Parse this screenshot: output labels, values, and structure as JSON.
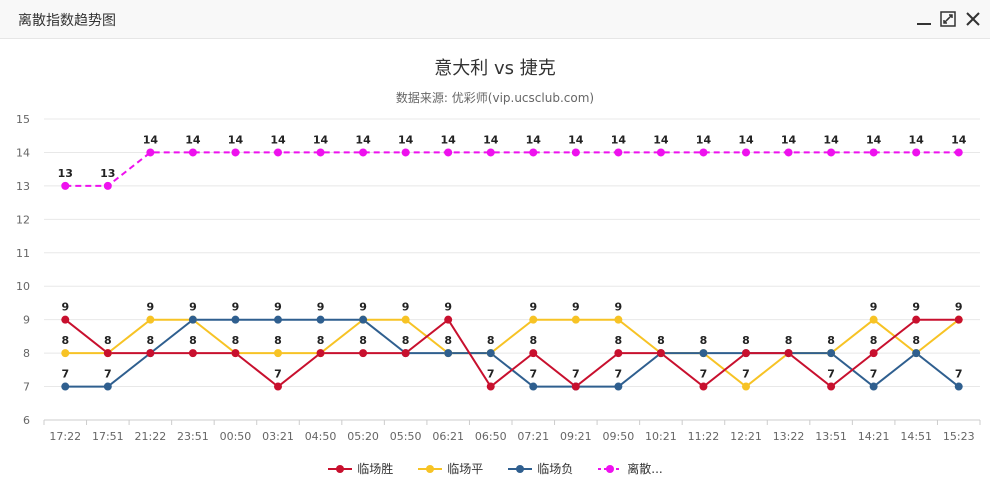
{
  "window": {
    "title": "离散指数趋势图",
    "controls": [
      "minimize-icon",
      "maximize-icon",
      "close-icon"
    ]
  },
  "chart_data": {
    "type": "line",
    "title": "意大利 vs 捷克",
    "subtitle": "数据来源: 优彩师(vip.ucsclub.com)",
    "x": [
      "17:22",
      "17:51",
      "21:22",
      "23:51",
      "00:50",
      "03:21",
      "04:50",
      "05:20",
      "05:50",
      "06:21",
      "06:50",
      "07:21",
      "09:21",
      "09:50",
      "10:21",
      "11:22",
      "12:21",
      "13:22",
      "13:51",
      "14:21",
      "14:51",
      "15:23"
    ],
    "ylim": [
      6,
      15
    ],
    "yticks": [
      6,
      7,
      8,
      9,
      10,
      11,
      12,
      13,
      14,
      15
    ],
    "grid": true,
    "legend_position": "bottom",
    "series": [
      {
        "name": "临场胜",
        "color": "#c8102e",
        "dashed": false,
        "values": [
          9,
          8,
          8,
          8,
          8,
          7,
          8,
          8,
          8,
          9,
          7,
          8,
          7,
          8,
          8,
          7,
          8,
          8,
          7,
          8,
          9,
          9
        ]
      },
      {
        "name": "临场平",
        "color": "#f7c325",
        "dashed": false,
        "values": [
          8,
          8,
          9,
          9,
          8,
          8,
          8,
          9,
          9,
          8,
          8,
          9,
          9,
          9,
          8,
          8,
          7,
          8,
          8,
          9,
          8,
          9
        ]
      },
      {
        "name": "临场负",
        "color": "#2f5f8f",
        "dashed": false,
        "values": [
          7,
          7,
          8,
          9,
          9,
          9,
          9,
          9,
          8,
          8,
          8,
          7,
          7,
          7,
          8,
          8,
          8,
          8,
          8,
          7,
          8,
          7
        ]
      },
      {
        "name": "离散...",
        "color": "#ee11ee",
        "dashed": true,
        "values": [
          13,
          13,
          14,
          14,
          14,
          14,
          14,
          14,
          14,
          14,
          14,
          14,
          14,
          14,
          14,
          14,
          14,
          14,
          14,
          14,
          14,
          14
        ]
      }
    ]
  }
}
